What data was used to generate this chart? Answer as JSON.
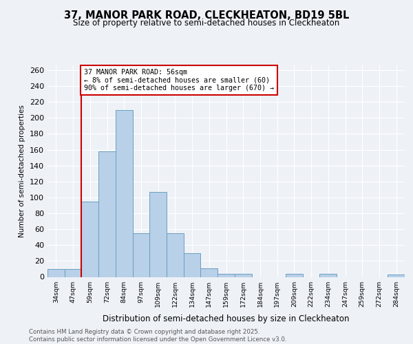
{
  "title": "37, MANOR PARK ROAD, CLECKHEATON, BD19 5BL",
  "subtitle": "Size of property relative to semi-detached houses in Cleckheaton",
  "xlabel": "Distribution of semi-detached houses by size in Cleckheaton",
  "ylabel": "Number of semi-detached properties",
  "categories": [
    "34sqm",
    "47sqm",
    "59sqm",
    "72sqm",
    "84sqm",
    "97sqm",
    "109sqm",
    "122sqm",
    "134sqm",
    "147sqm",
    "159sqm",
    "172sqm",
    "184sqm",
    "197sqm",
    "209sqm",
    "222sqm",
    "234sqm",
    "247sqm",
    "259sqm",
    "272sqm",
    "284sqm"
  ],
  "values": [
    10,
    10,
    95,
    158,
    210,
    55,
    107,
    55,
    30,
    11,
    4,
    4,
    0,
    0,
    4,
    0,
    4,
    0,
    0,
    0,
    3
  ],
  "bar_color": "#b8d0e8",
  "bar_edge_color": "#6a9fc0",
  "property_line_x": 1.5,
  "property_line_color": "#cc0000",
  "annotation_text": "37 MANOR PARK ROAD: 56sqm\n← 8% of semi-detached houses are smaller (60)\n90% of semi-detached houses are larger (670) →",
  "annotation_box_color": "#cc0000",
  "footer": "Contains HM Land Registry data © Crown copyright and database right 2025.\nContains public sector information licensed under the Open Government Licence v3.0.",
  "ylim": [
    0,
    266
  ],
  "yticks": [
    0,
    20,
    40,
    60,
    80,
    100,
    120,
    140,
    160,
    180,
    200,
    220,
    240,
    260
  ],
  "background_color": "#eef2f7",
  "grid_color": "#ffffff"
}
